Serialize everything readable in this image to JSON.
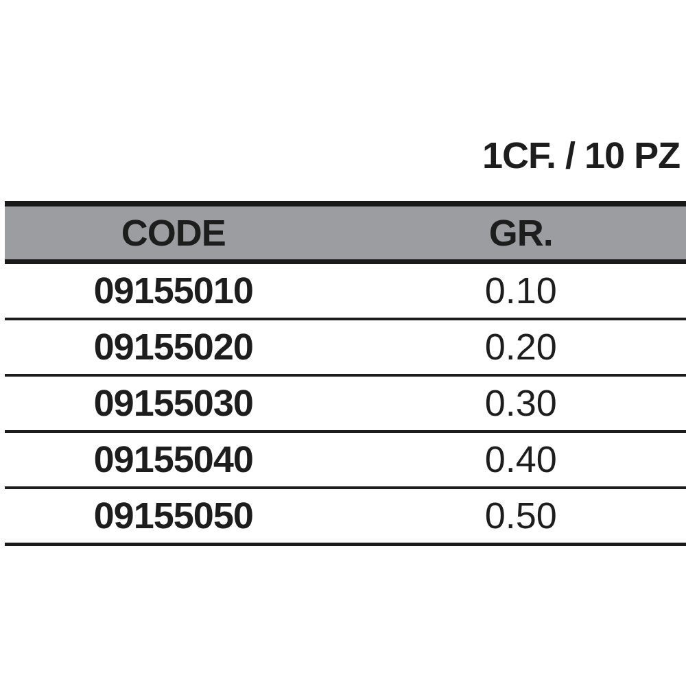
{
  "pack_title": "1CF. / 10 PZ",
  "table": {
    "columns": [
      {
        "label": "CODE"
      },
      {
        "label": "GR."
      }
    ],
    "rows": [
      {
        "code": "09155010",
        "gr": "0.10"
      },
      {
        "code": "09155020",
        "gr": "0.20"
      },
      {
        "code": "09155030",
        "gr": "0.30"
      },
      {
        "code": "09155040",
        "gr": "0.40"
      },
      {
        "code": "09155050",
        "gr": "0.50"
      }
    ]
  },
  "colors": {
    "header_background": "#9b9da0",
    "line": "#1a1a1a",
    "text": "#1d1d1d",
    "page_background": "#ffffff"
  }
}
